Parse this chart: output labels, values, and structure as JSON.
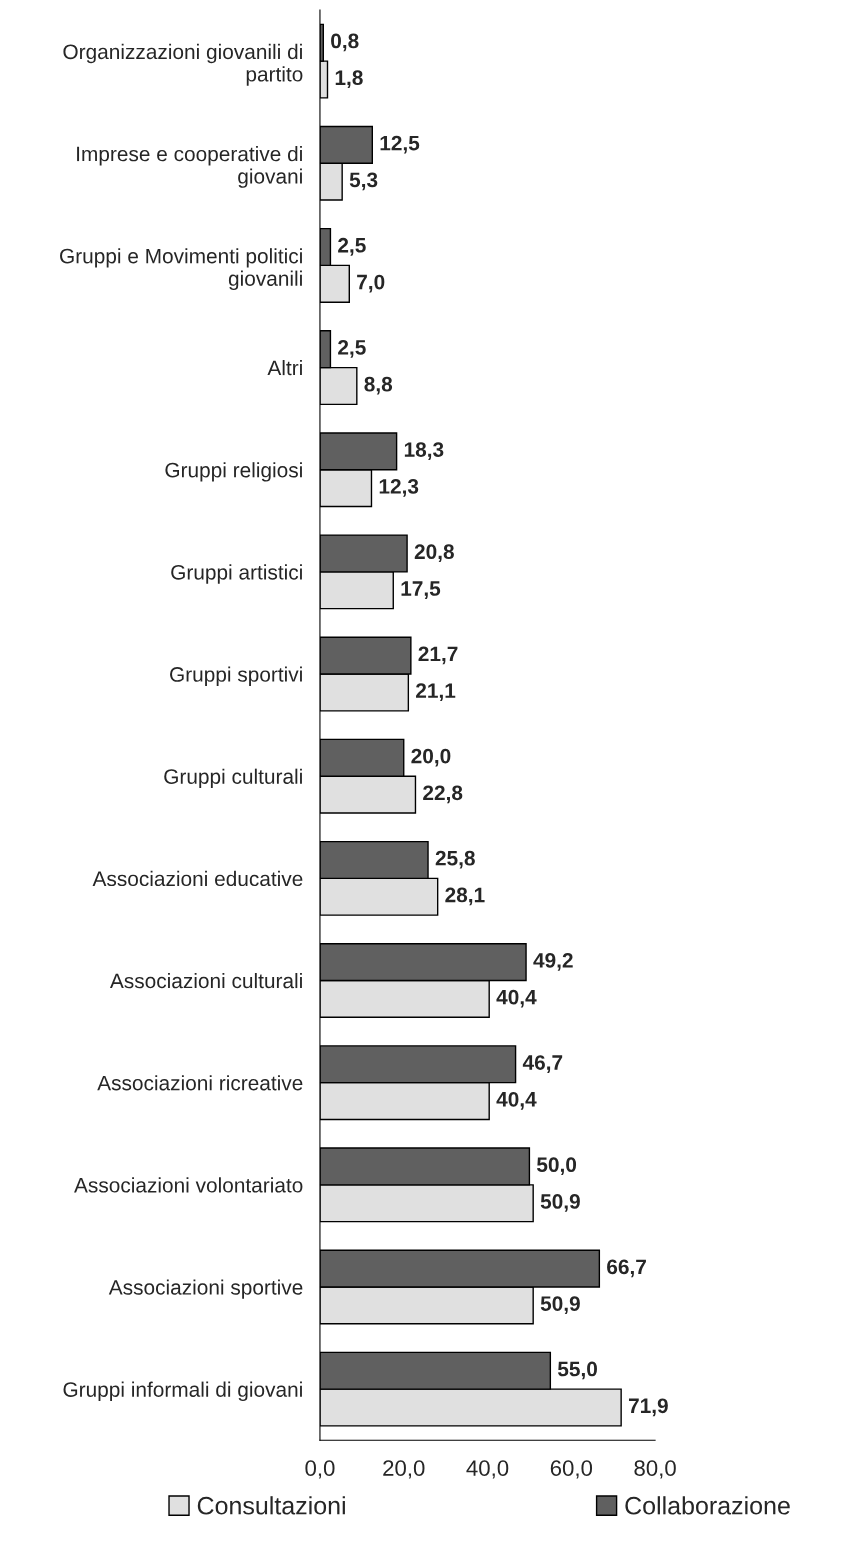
{
  "chart_data": {
    "type": "bar",
    "orientation": "horizontal",
    "categories": [
      "Organizzazioni giovanili di\npartito",
      "Imprese e cooperative di\ngiovani",
      "Gruppi e Movimenti politici\ngiovanili",
      "Altri",
      "Gruppi religiosi",
      "Gruppi artistici",
      "Gruppi sportivi",
      "Gruppi culturali",
      "Associazioni educative",
      "Associazioni culturali",
      "Associazioni ricreative",
      "Associazioni volontariato",
      "Associazioni sportive",
      "Gruppi informali di giovani"
    ],
    "series": [
      {
        "name": "Consultazioni",
        "color": "#e0e0e0",
        "values": [
          1.8,
          5.3,
          7.0,
          8.8,
          12.3,
          17.5,
          21.1,
          22.8,
          28.1,
          40.4,
          40.4,
          50.9,
          50.9,
          71.9
        ],
        "value_labels": [
          "1,8",
          "5,3",
          "7,0",
          "8,8",
          "12,3",
          "17,5",
          "21,1",
          "22,8",
          "28,1",
          "40,4",
          "40,4",
          "50,9",
          "50,9",
          "71,9"
        ]
      },
      {
        "name": "Collaborazione",
        "color": "#606060",
        "values": [
          0.8,
          12.5,
          2.5,
          2.5,
          18.3,
          20.8,
          21.7,
          20.0,
          25.8,
          49.2,
          46.7,
          50.0,
          66.7,
          55.0
        ],
        "value_labels": [
          "0,8",
          "12,5",
          "2,5",
          "2,5",
          "18,3",
          "20,8",
          "21,7",
          "20,0",
          "25,8",
          "49,2",
          "46,7",
          "50,0",
          "66,7",
          "55,0"
        ]
      }
    ],
    "xlim": [
      0,
      80
    ],
    "xticks": [
      {
        "value": 0,
        "label": "0,0"
      },
      {
        "value": 20,
        "label": "20,0"
      },
      {
        "value": 40,
        "label": "40,0"
      },
      {
        "value": 60,
        "label": "60,0"
      },
      {
        "value": 80,
        "label": "80,0"
      }
    ],
    "grid": false,
    "legend": "bottom"
  }
}
